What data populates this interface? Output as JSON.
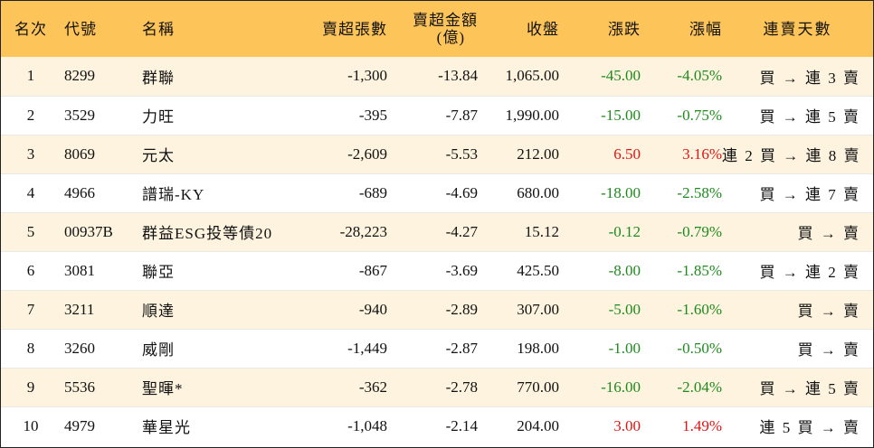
{
  "headers": {
    "rank": "名次",
    "code": "代號",
    "name": "名稱",
    "net_sell_lots": "賣超張數",
    "net_sell_amount_line1": "賣超金額",
    "net_sell_amount_line2": "(億)",
    "close": "收盤",
    "change": "漲跌",
    "change_pct": "漲幅",
    "streak_days": "連賣天數"
  },
  "rows": [
    {
      "rank": "1",
      "code": "8299",
      "name": "群聯",
      "lots": "-1,300",
      "amount": "-13.84",
      "close": "1,065.00",
      "change": "-45.00",
      "pct": "-4.05%",
      "dir": "neg",
      "streak": "買 → 連 3 賣"
    },
    {
      "rank": "2",
      "code": "3529",
      "name": "力旺",
      "lots": "-395",
      "amount": "-7.87",
      "close": "1,990.00",
      "change": "-15.00",
      "pct": "-0.75%",
      "dir": "neg",
      "streak": "買 → 連 5 賣"
    },
    {
      "rank": "3",
      "code": "8069",
      "name": "元太",
      "lots": "-2,609",
      "amount": "-5.53",
      "close": "212.00",
      "change": "6.50",
      "pct": "3.16%",
      "dir": "pos",
      "streak": "連 2 買 → 連 8 賣"
    },
    {
      "rank": "4",
      "code": "4966",
      "name": "譜瑞-KY",
      "lots": "-689",
      "amount": "-4.69",
      "close": "680.00",
      "change": "-18.00",
      "pct": "-2.58%",
      "dir": "neg",
      "streak": "買 → 連 7 賣"
    },
    {
      "rank": "5",
      "code": "00937B",
      "name": "群益ESG投等債20",
      "lots": "-28,223",
      "amount": "-4.27",
      "close": "15.12",
      "change": "-0.12",
      "pct": "-0.79%",
      "dir": "neg",
      "streak": "買 → 賣"
    },
    {
      "rank": "6",
      "code": "3081",
      "name": "聯亞",
      "lots": "-867",
      "amount": "-3.69",
      "close": "425.50",
      "change": "-8.00",
      "pct": "-1.85%",
      "dir": "neg",
      "streak": "買 → 連 2 賣"
    },
    {
      "rank": "7",
      "code": "3211",
      "name": "順達",
      "lots": "-940",
      "amount": "-2.89",
      "close": "307.00",
      "change": "-5.00",
      "pct": "-1.60%",
      "dir": "neg",
      "streak": "買 → 賣"
    },
    {
      "rank": "8",
      "code": "3260",
      "name": "威剛",
      "lots": "-1,449",
      "amount": "-2.87",
      "close": "198.00",
      "change": "-1.00",
      "pct": "-0.50%",
      "dir": "neg",
      "streak": "買 → 賣"
    },
    {
      "rank": "9",
      "code": "5536",
      "name": "聖暉*",
      "lots": "-362",
      "amount": "-2.78",
      "close": "770.00",
      "change": "-16.00",
      "pct": "-2.04%",
      "dir": "neg",
      "streak": "買 → 連 5 賣"
    },
    {
      "rank": "10",
      "code": "4979",
      "name": "華星光",
      "lots": "-1,048",
      "amount": "-2.14",
      "close": "204.00",
      "change": "3.00",
      "pct": "1.49%",
      "dir": "pos",
      "streak": "連 5 買 → 賣"
    }
  ],
  "colors": {
    "header_bg": "#fdc45a",
    "odd_row_bg": "#fdf3df",
    "down": "#1e8a1e",
    "up": "#e01414"
  }
}
